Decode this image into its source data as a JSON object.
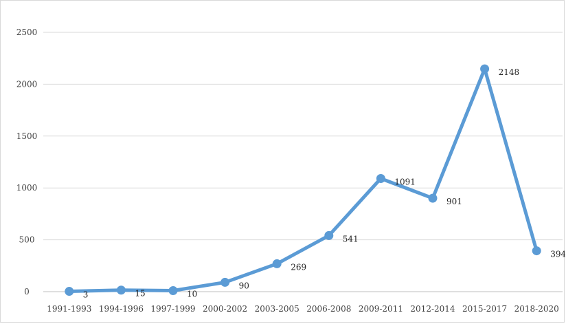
{
  "chart_data": {
    "type": "line",
    "title": "",
    "xlabel": "",
    "ylabel": "",
    "categories": [
      "1991-1993",
      "1994-1996",
      "1997-1999",
      "2000-2002",
      "2003-2005",
      "2006-2008",
      "2009-2011",
      "2012-2014",
      "2015-2017",
      "2018-2020"
    ],
    "series": [
      {
        "values": [
          3,
          15,
          10,
          90,
          269,
          541,
          1091,
          901,
          2148,
          394
        ],
        "color": "#5b9bd5"
      }
    ],
    "ylim": [
      0,
      2500
    ],
    "yticks": [
      0,
      500,
      1000,
      1500,
      2000,
      2500
    ],
    "grid": true,
    "legend": "none",
    "data_labels": true
  },
  "colors": {
    "line": "#5b9bd5",
    "grid": "#d9d9d9",
    "axis": "#bfbfbf",
    "tick_text": "#404040",
    "label_text": "#222222"
  }
}
